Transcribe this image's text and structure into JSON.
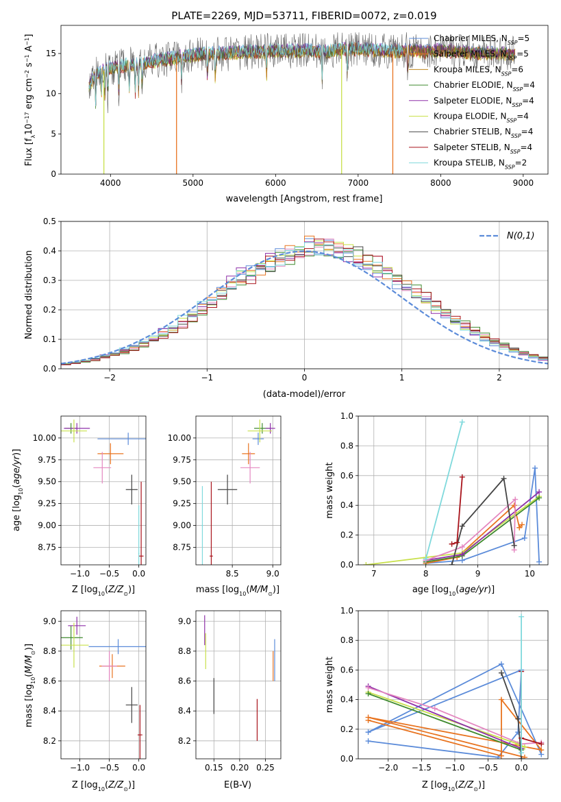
{
  "title": "PLATE=2269, MJD=53711, FIBERID=0072, z=0.019",
  "colors": {
    "Chabrier MILES": "#5b8bd9",
    "Salpeter MILES": "#e8731f",
    "Kroupa MILES": "#c0861c",
    "Chabrier ELODIE": "#3f8a2e",
    "Salpeter ELODIE": "#8e2fa8",
    "Kroupa ELODIE": "#c8e04a",
    "Chabrier STELIB": "#444444",
    "Salpeter STELIB": "#a8121a",
    "Kroupa STELIB": "#7fd9dc",
    "pink": "#e487c0",
    "normal": "#5b8bd9"
  },
  "chart_data": [
    {
      "id": "spectrum",
      "type": "line",
      "xlabel": "wavelength [Angstrom, rest frame]",
      "ylabel": "Flux [f_λ10^-17 erg cm^-2 s^-1 A^-1]",
      "xlim": [
        3400,
        9300
      ],
      "ylim": [
        0,
        18.5
      ],
      "xticks": [
        4000,
        5000,
        6000,
        7000,
        8000,
        9000
      ],
      "yticks": [
        0,
        5,
        10,
        15
      ],
      "legend": "top-right",
      "series": [
        {
          "name": "Chabrier MILES, N_SSP=5"
        },
        {
          "name": "Salpeter MILES, N_SSP=5"
        },
        {
          "name": "Kroupa MILES, N_SSP=6"
        },
        {
          "name": "Chabrier ELODIE, N_SSP=4"
        },
        {
          "name": "Salpeter ELODIE, N_SSP=4"
        },
        {
          "name": "Kroupa ELODIE, N_SSP=4"
        },
        {
          "name": "Chabrier STELIB, N_SSP=4"
        },
        {
          "name": "Salpeter STELIB, N_SSP=4"
        },
        {
          "name": "Kroupa STELIB, N_SSP=2"
        }
      ],
      "continuum_x": [
        3740,
        3800,
        3900,
        4000,
        4100,
        4200,
        4400,
        4600,
        4800,
        5000,
        5200,
        5400,
        5600,
        5800,
        6000,
        6200,
        6400,
        6600,
        6800,
        7000,
        7200,
        7400,
        7600,
        7800,
        8000,
        8200,
        8400,
        8600,
        8800,
        8900
      ],
      "continuum_y": [
        11.0,
        12.2,
        12.8,
        13.2,
        13.4,
        13.6,
        13.8,
        14.2,
        14.5,
        14.8,
        15.0,
        15.0,
        15.2,
        15.2,
        15.4,
        15.3,
        15.4,
        15.2,
        15.5,
        15.6,
        15.4,
        15.3,
        15.4,
        15.2,
        15.4,
        15.2,
        15.1,
        15.0,
        15.0,
        15.0
      ],
      "spikes": [
        {
          "x": 4800,
          "color": "Salpeter MILES"
        },
        {
          "x": 6800,
          "color": "Kroupa ELODIE"
        },
        {
          "x": 3920,
          "color": "Kroupa ELODIE"
        },
        {
          "x": 7420,
          "color": "Salpeter MILES"
        }
      ]
    },
    {
      "id": "residuals",
      "type": "line",
      "xlabel": "(data-model)/error",
      "ylabel": "Normed distribution",
      "xlim": [
        -2.5,
        2.5
      ],
      "ylim": [
        0,
        0.5
      ],
      "xticks": [
        -2,
        -1,
        0,
        1,
        2
      ],
      "yticks": [
        0.0,
        0.1,
        0.2,
        0.3,
        0.4,
        0.5
      ],
      "legend": "top-right",
      "normal_label": "N(0,1)",
      "bin_width": 0.1
    },
    {
      "id": "age_vs_Z",
      "type": "scatter",
      "xlabel": "Z [log10(Z/Z⊙)]",
      "ylabel": "age [log10(age/yr)]",
      "xlim": [
        -1.32,
        0.12
      ],
      "ylim": [
        8.55,
        10.25
      ],
      "xticks": [
        -1.0,
        -0.5,
        0.0
      ],
      "yticks": [
        8.75,
        9.0,
        9.25,
        9.5,
        9.75,
        10.0
      ],
      "points": [
        {
          "x": -0.18,
          "y": 9.99,
          "xerr": 0.52,
          "yerr": 0.07,
          "color": "Chabrier MILES"
        },
        {
          "x": -0.48,
          "y": 9.82,
          "xerr": 0.22,
          "yerr": 0.12,
          "color": "Salpeter MILES"
        },
        {
          "x": -0.62,
          "y": 9.66,
          "xerr": 0.15,
          "yerr": 0.18,
          "color": "pink"
        },
        {
          "x": -1.15,
          "y": 10.11,
          "xerr": 0.1,
          "yerr": 0.06,
          "color": "Chabrier ELODIE"
        },
        {
          "x": -1.05,
          "y": 10.11,
          "xerr": 0.22,
          "yerr": 0.06,
          "color": "Salpeter ELODIE"
        },
        {
          "x": -1.1,
          "y": 10.08,
          "xerr": 0.22,
          "yerr": 0.13,
          "color": "Kroupa ELODIE"
        },
        {
          "x": -0.12,
          "y": 9.41,
          "xerr": 0.1,
          "yerr": 0.17,
          "color": "Chabrier STELIB"
        },
        {
          "x": 0.04,
          "y": 8.65,
          "xerr": 0.04,
          "yerr": 0.85,
          "color": "Salpeter STELIB"
        },
        {
          "x": 0.0,
          "y": 8.68,
          "xerr": 0.01,
          "yerr": 0.55,
          "color": "Kroupa STELIB"
        }
      ]
    },
    {
      "id": "age_vs_mass",
      "type": "scatter",
      "xlabel": "mass [log10(M/M⊙)]",
      "ylabel": "",
      "xlim": [
        8.05,
        9.1
      ],
      "ylim": [
        8.55,
        10.25
      ],
      "xticks": [
        8.5,
        9.0
      ],
      "yticks": [
        8.75,
        9.0,
        9.25,
        9.5,
        9.75,
        10.0
      ],
      "points": [
        {
          "x": 8.82,
          "y": 9.99,
          "xerr": 0.07,
          "yerr": 0.07,
          "color": "Chabrier MILES"
        },
        {
          "x": 8.7,
          "y": 9.82,
          "xerr": 0.08,
          "yerr": 0.12,
          "color": "Salpeter MILES"
        },
        {
          "x": 8.72,
          "y": 9.66,
          "xerr": 0.12,
          "yerr": 0.18,
          "color": "pink"
        },
        {
          "x": 8.87,
          "y": 10.11,
          "xerr": 0.1,
          "yerr": 0.06,
          "color": "Chabrier ELODIE"
        },
        {
          "x": 8.97,
          "y": 10.11,
          "xerr": 0.06,
          "yerr": 0.06,
          "color": "Salpeter ELODIE"
        },
        {
          "x": 8.84,
          "y": 10.08,
          "xerr": 0.15,
          "yerr": 0.13,
          "color": "Kroupa ELODIE"
        },
        {
          "x": 8.44,
          "y": 9.41,
          "xerr": 0.12,
          "yerr": 0.17,
          "color": "Chabrier STELIB"
        },
        {
          "x": 8.24,
          "y": 8.65,
          "xerr": 0.02,
          "yerr": 0.85,
          "color": "Salpeter STELIB"
        },
        {
          "x": 8.13,
          "y": 9.0,
          "xerr": 0.01,
          "yerr": 0.45,
          "color": "Kroupa STELIB"
        }
      ]
    },
    {
      "id": "weight_vs_age",
      "type": "line",
      "xlabel": "age [log10(age/yr)]",
      "ylabel": "mass weight",
      "xlim": [
        6.7,
        10.35
      ],
      "ylim": [
        0,
        1.0
      ],
      "xticks": [
        7,
        8,
        9,
        10
      ],
      "yticks": [
        0.0,
        0.2,
        0.4,
        0.6,
        0.8,
        1.0
      ],
      "series": [
        {
          "color": "Chabrier MILES",
          "x": [
            8.0,
            8.7,
            9.9,
            10.1,
            10.18
          ],
          "y": [
            0.01,
            0.03,
            0.18,
            0.65,
            0.02
          ]
        },
        {
          "color": "Salpeter MILES",
          "x": [
            8.0,
            8.6,
            9.7,
            9.8,
            9.85
          ],
          "y": [
            0.01,
            0.05,
            0.4,
            0.25,
            0.27
          ]
        },
        {
          "color": "Kroupa ELODIE",
          "x": [
            6.85,
            8.0,
            8.7,
            10.18
          ],
          "y": [
            0.0,
            0.05,
            0.08,
            0.46
          ]
        },
        {
          "color": "Chabrier ELODIE",
          "x": [
            8.0,
            8.7,
            10.18
          ],
          "y": [
            0.02,
            0.06,
            0.45
          ]
        },
        {
          "color": "Salpeter ELODIE",
          "x": [
            8.0,
            8.7,
            10.18
          ],
          "y": [
            0.03,
            0.07,
            0.49
          ]
        },
        {
          "color": "pink",
          "x": [
            8.0,
            8.7,
            9.72,
            9.7
          ],
          "y": [
            0.03,
            0.12,
            0.44,
            0.1
          ]
        },
        {
          "color": "Chabrier STELIB",
          "x": [
            8.5,
            8.7,
            9.5,
            9.7
          ],
          "y": [
            0.0,
            0.26,
            0.58,
            0.13
          ]
        },
        {
          "color": "Salpeter STELIB",
          "x": [
            8.5,
            8.6,
            8.7
          ],
          "y": [
            0.14,
            0.15,
            0.59
          ]
        },
        {
          "color": "Kroupa STELIB",
          "x": [
            8.0,
            8.7
          ],
          "y": [
            0.04,
            0.96
          ]
        }
      ]
    },
    {
      "id": "mass_vs_Z",
      "type": "scatter",
      "xlabel": "Z [log10(Z/Z⊙)]",
      "ylabel": "mass [log10(M/M⊙)]",
      "xlim": [
        -1.32,
        0.12
      ],
      "ylim": [
        8.08,
        9.07
      ],
      "xticks": [
        -1.0,
        -0.5,
        0.0
      ],
      "yticks": [
        8.2,
        8.4,
        8.6,
        8.8,
        9.0
      ],
      "points": [
        {
          "x": -0.35,
          "y": 8.83,
          "xerr": 0.5,
          "yerr": 0.05,
          "color": "Chabrier MILES"
        },
        {
          "x": -0.45,
          "y": 8.7,
          "xerr": 0.22,
          "yerr": 0.08,
          "color": "Salpeter MILES"
        },
        {
          "x": -0.5,
          "y": 8.7,
          "xerr": 0.13,
          "yerr": 0.1,
          "color": "pink"
        },
        {
          "x": -1.15,
          "y": 8.89,
          "xerr": 0.2,
          "yerr": 0.08,
          "color": "Chabrier ELODIE"
        },
        {
          "x": -1.05,
          "y": 8.97,
          "xerr": 0.15,
          "yerr": 0.06,
          "color": "Salpeter ELODIE"
        },
        {
          "x": -1.1,
          "y": 8.84,
          "xerr": 0.25,
          "yerr": 0.15,
          "color": "Kroupa ELODIE"
        },
        {
          "x": -0.12,
          "y": 8.44,
          "xerr": 0.1,
          "yerr": 0.12,
          "color": "Chabrier STELIB"
        },
        {
          "x": 0.02,
          "y": 8.24,
          "xerr": 0.04,
          "yerr": 0.2,
          "color": "Salpeter STELIB"
        }
      ]
    },
    {
      "id": "mass_vs_ebv",
      "type": "scatter",
      "xlabel": "E(B-V)",
      "ylabel": "",
      "xlim": [
        0.115,
        0.28
      ],
      "ylim": [
        8.08,
        9.07
      ],
      "xticks": [
        0.15,
        0.2,
        0.25
      ],
      "yticks": [
        8.2,
        8.4,
        8.6,
        8.8,
        9.0
      ],
      "points": [
        {
          "x": 0.268,
          "y": 8.74,
          "xerr": 0.0,
          "yerr": 0.14,
          "color": "Chabrier MILES"
        },
        {
          "x": 0.265,
          "y": 8.7,
          "xerr": 0.0,
          "yerr": 0.1,
          "color": "Salpeter MILES"
        },
        {
          "x": 0.132,
          "y": 8.94,
          "xerr": 0.0,
          "yerr": 0.1,
          "color": "Salpeter ELODIE"
        },
        {
          "x": 0.134,
          "y": 8.8,
          "xerr": 0.0,
          "yerr": 0.12,
          "color": "Kroupa ELODIE"
        },
        {
          "x": 0.15,
          "y": 8.5,
          "xerr": 0.0,
          "yerr": 0.12,
          "color": "Chabrier STELIB"
        },
        {
          "x": 0.234,
          "y": 8.34,
          "xerr": 0.0,
          "yerr": 0.14,
          "color": "Salpeter STELIB"
        }
      ]
    },
    {
      "id": "weight_vs_Z",
      "type": "line",
      "xlabel": "Z [log10(Z/Z⊙)]",
      "ylabel": "mass weight",
      "xlim": [
        -2.45,
        0.4
      ],
      "ylim": [
        0,
        1.0
      ],
      "xticks": [
        -2.0,
        -1.5,
        -1.0,
        -0.5,
        0.0
      ],
      "yticks": [
        0.0,
        0.2,
        0.4,
        0.6,
        0.8,
        1.0
      ],
      "series": [
        {
          "color": "Chabrier MILES",
          "x": [
            -2.3,
            -0.35,
            -0.05,
            0.0,
            -2.3,
            -0.3,
            0.3
          ],
          "y": [
            0.12,
            0.01,
            0.18,
            0.6,
            0.18,
            0.64,
            0.03
          ]
        },
        {
          "color": "Salpeter MILES",
          "x": [
            -2.3,
            -0.3,
            -0.3,
            0.3,
            -2.3,
            0.05
          ],
          "y": [
            0.26,
            0.02,
            0.4,
            0.06,
            0.28,
            0.01
          ]
        },
        {
          "color": "Kroupa ELODIE",
          "x": [
            -2.3,
            -0.05,
            0.05
          ],
          "y": [
            0.45,
            0.1,
            0.08
          ]
        },
        {
          "color": "Chabrier ELODIE",
          "x": [
            -2.3,
            0.0
          ],
          "y": [
            0.44,
            0.06
          ]
        },
        {
          "color": "Salpeter ELODIE",
          "x": [
            -2.3,
            0.0
          ],
          "y": [
            0.49,
            0.07
          ]
        },
        {
          "color": "pink",
          "x": [
            -2.3,
            -1.3,
            0.0,
            0.3
          ],
          "y": [
            0.48,
            0.34,
            0.1,
            0.11
          ]
        },
        {
          "color": "Chabrier STELIB",
          "x": [
            -0.3,
            -0.05,
            0.0
          ],
          "y": [
            0.58,
            0.27,
            0.0
          ]
        },
        {
          "color": "Salpeter STELIB",
          "x": [
            0.0,
            0.0,
            0.3
          ],
          "y": [
            0.59,
            0.14,
            0.1
          ]
        },
        {
          "color": "Kroupa STELIB",
          "x": [
            0.0,
            0.0
          ],
          "y": [
            0.04,
            0.96
          ]
        }
      ]
    }
  ]
}
